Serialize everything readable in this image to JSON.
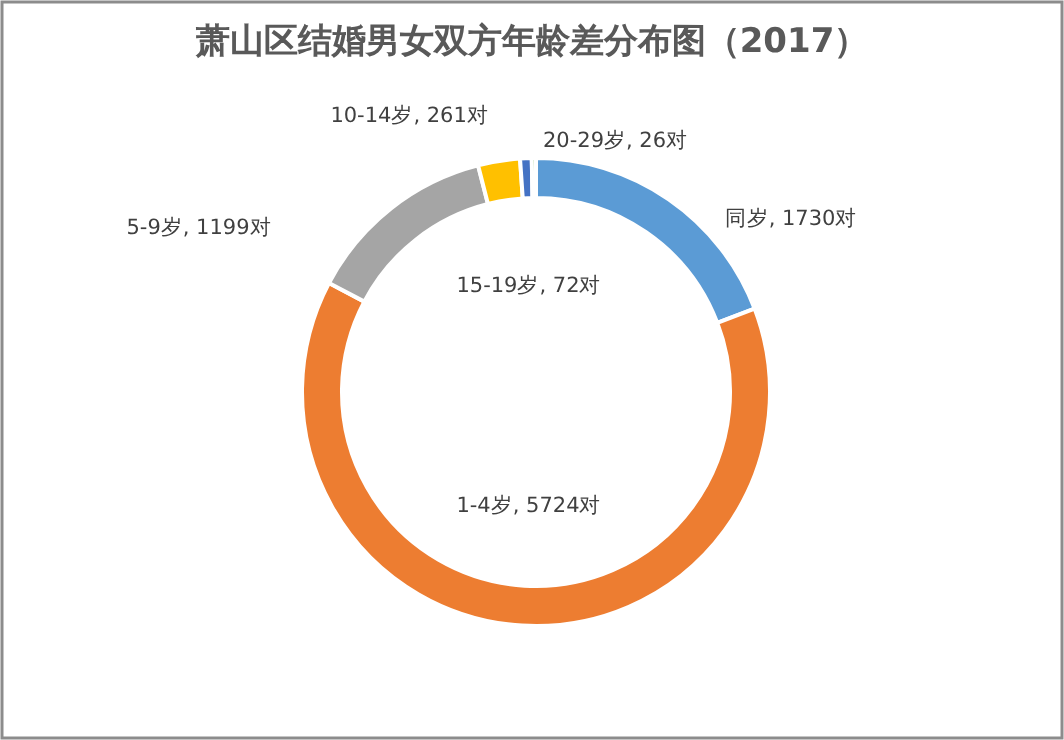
{
  "chart_data": {
    "type": "donut",
    "title": "萧山区结婚男女双方年龄差分布图（2017）",
    "categories": [
      "同岁",
      "1-4岁",
      "5-9岁",
      "10-14岁",
      "15-19岁",
      "20-29岁"
    ],
    "values": [
      1730,
      5724,
      1199,
      261,
      72,
      26
    ],
    "value_labels": [
      "1730对",
      "5724对",
      "1199对",
      "261对",
      "72对",
      "26对"
    ],
    "colors": [
      "#5b9bd5",
      "#ed7d31",
      "#a5a5a5",
      "#ffc000",
      "#4472c4",
      "#70ad47"
    ],
    "legend": false
  }
}
